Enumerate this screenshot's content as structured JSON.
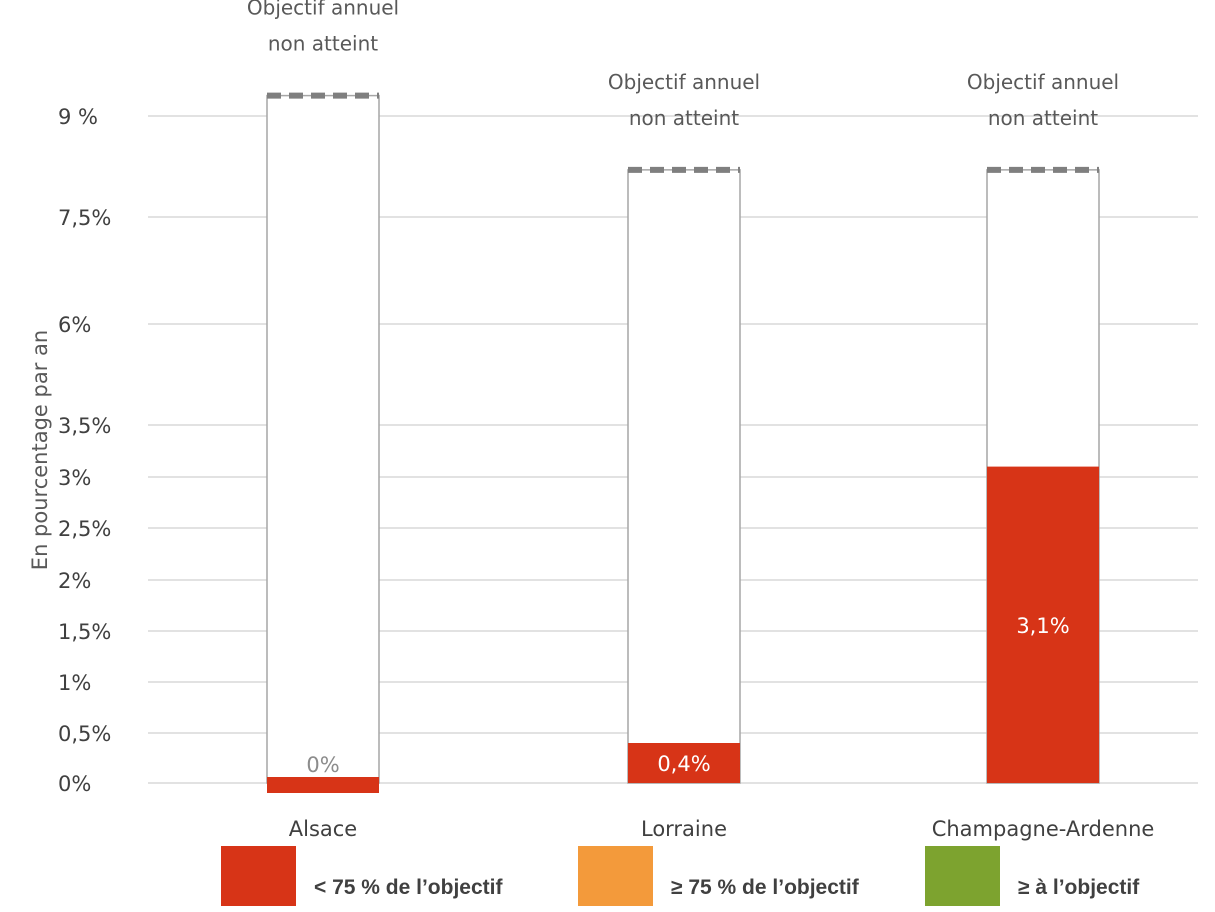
{
  "chart_data": {
    "type": "bar",
    "ylabel": "En pourcentage par an",
    "categories": [
      "Alsace",
      "Lorraine",
      "Champagne-Ardenne"
    ],
    "series": [
      {
        "values": [
          0,
          0.4,
          3.1
        ],
        "value_labels": [
          "0%",
          "0,4%",
          "3,1%"
        ],
        "color": "#d73417"
      }
    ],
    "objectives": [
      9.3,
      8.2,
      8.2
    ],
    "objective_annotations": [
      [
        "Objectif annuel",
        "non atteint"
      ],
      [
        "Objectif annuel",
        "non atteint"
      ],
      [
        "Objectif annuel",
        "non atteint"
      ]
    ],
    "ticks": [
      {
        "value": 0,
        "label": "0%"
      },
      {
        "value": 0.5,
        "label": "0,5%"
      },
      {
        "value": 1,
        "label": "1%"
      },
      {
        "value": 1.5,
        "label": "1,5%"
      },
      {
        "value": 2,
        "label": "2%"
      },
      {
        "value": 2.5,
        "label": "2,5%"
      },
      {
        "value": 3,
        "label": "3%"
      },
      {
        "value": 3.5,
        "label": "3,5%"
      },
      {
        "value": 6,
        "label": "6%"
      },
      {
        "value": 7.5,
        "label": "7,5%"
      },
      {
        "value": 9,
        "label": "9 %"
      }
    ],
    "grid": true,
    "legend_position": "bottom",
    "legend": [
      {
        "label": "< 75 % de l’objectif",
        "color": "#d73417"
      },
      {
        "label": "≥ 75 % de l’objectif",
        "color": "#f39a3b"
      },
      {
        "label": "≥  à l’objectif",
        "color": "#7da32f"
      }
    ]
  }
}
